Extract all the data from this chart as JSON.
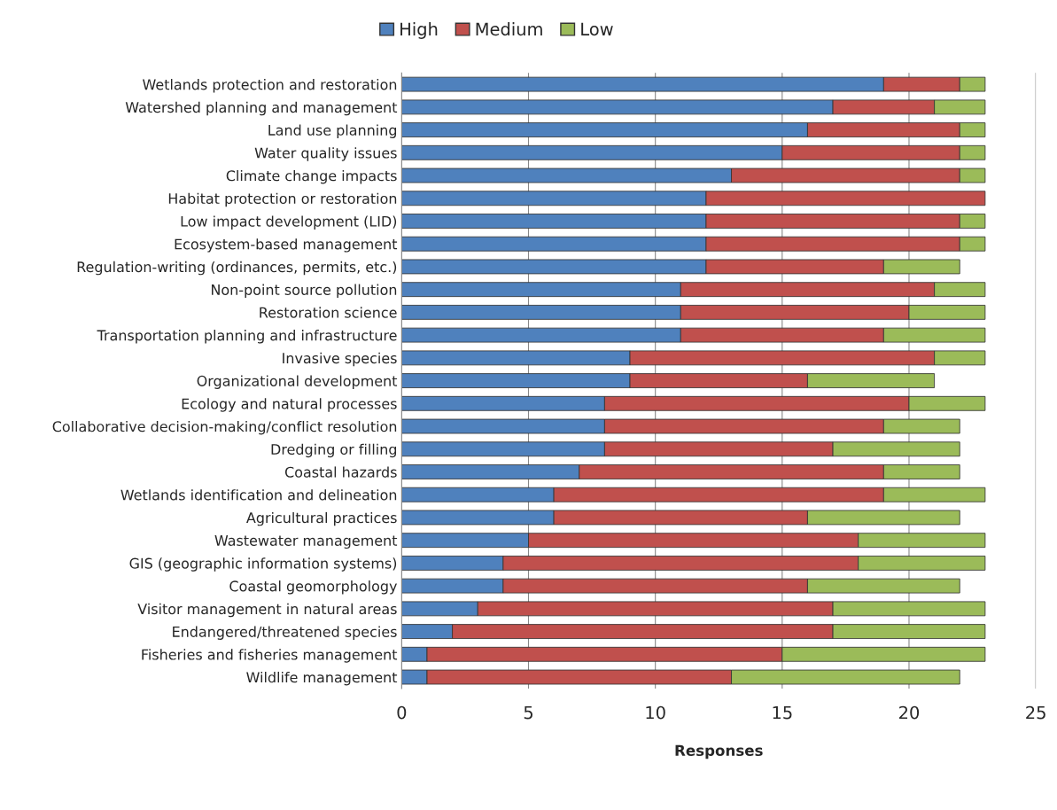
{
  "chart_data": {
    "type": "bar",
    "orientation": "horizontal",
    "stacked": true,
    "xlabel": "Responses",
    "xlim": [
      0,
      25
    ],
    "xticks": [
      0,
      5,
      10,
      15,
      20,
      25
    ],
    "grid": "x",
    "legend": "top",
    "categories": [
      "Wetlands protection and restoration",
      "Watershed planning and management",
      "Land use planning",
      "Water quality issues",
      "Climate change impacts",
      "Habitat protection or restoration",
      "Low impact development (LID)",
      "Ecosystem-based management",
      "Regulation-writing (ordinances, permits, etc.)",
      "Non-point source pollution",
      "Restoration science",
      "Transportation planning and infrastructure",
      "Invasive species",
      "Organizational development",
      "Ecology and natural processes",
      "Collaborative decision-making/conflict resolution",
      "Dredging or filling",
      "Coastal hazards",
      "Wetlands identification and delineation",
      "Agricultural practices",
      "Wastewater management",
      "GIS (geographic information systems)",
      "Coastal geomorphology",
      "Visitor management in natural areas",
      "Endangered/threatened species",
      "Fisheries and fisheries management",
      "Wildlife management"
    ],
    "series": [
      {
        "name": "High",
        "color": "#4f81bd",
        "values": [
          19,
          17,
          16,
          15,
          13,
          12,
          12,
          12,
          12,
          11,
          11,
          11,
          9,
          9,
          8,
          8,
          8,
          7,
          6,
          6,
          5,
          4,
          4,
          3,
          2,
          1,
          1
        ]
      },
      {
        "name": "Medium",
        "color": "#c0504d",
        "values": [
          3,
          4,
          6,
          7,
          9,
          11,
          10,
          10,
          7,
          10,
          9,
          8,
          12,
          7,
          12,
          11,
          9,
          12,
          13,
          10,
          13,
          14,
          12,
          14,
          15,
          14,
          12
        ]
      },
      {
        "name": "Low",
        "color": "#9bbb59",
        "values": [
          1,
          2,
          1,
          1,
          1,
          0,
          1,
          1,
          3,
          2,
          3,
          4,
          2,
          5,
          3,
          3,
          5,
          3,
          4,
          6,
          5,
          5,
          6,
          6,
          6,
          8,
          9
        ]
      }
    ]
  }
}
